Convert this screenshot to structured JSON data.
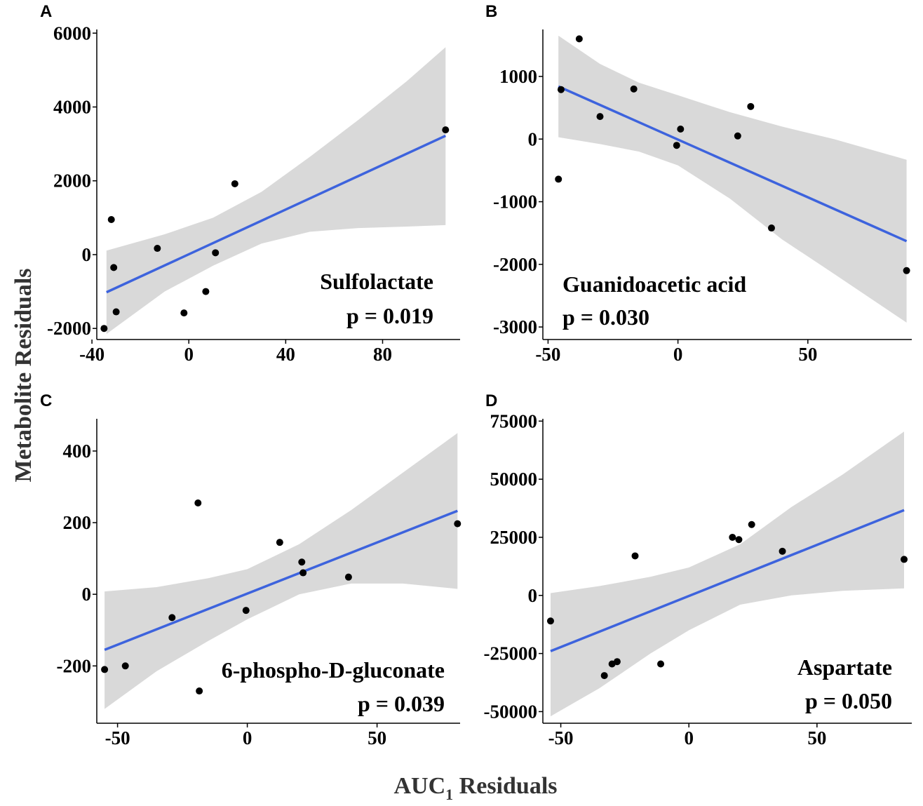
{
  "figure": {
    "ylabel": "Metabolite Residuals",
    "xlabel_main": "AUC",
    "xlabel_sub": "1",
    "xlabel_rest": " Residuals"
  },
  "colors": {
    "fit_line": "#3d63dd",
    "ci_band": "#d9d9d9",
    "points": "#000000",
    "axis": "#000000"
  },
  "chart_data": [
    {
      "panel": "A",
      "type": "scatter",
      "metabolite": "Sulfolactate",
      "p_label": "p = 0.019",
      "xlim": [
        -38,
        112
      ],
      "ylim": [
        -2300,
        6100
      ],
      "xticks": [
        -40,
        0,
        40,
        80
      ],
      "xtick_labels": [
        "-40",
        "0",
        "40",
        "80"
      ],
      "yticks": [
        -2000,
        0,
        2000,
        4000,
        6000
      ],
      "ytick_labels": [
        "-2000",
        "0",
        "2000",
        "4000",
        "6000"
      ],
      "points": [
        [
          -35,
          -2000
        ],
        [
          -32,
          950
        ],
        [
          -31,
          -350
        ],
        [
          -30,
          -1550
        ],
        [
          -13,
          170
        ],
        [
          -2,
          -1580
        ],
        [
          7,
          -1000
        ],
        [
          11,
          50
        ],
        [
          19,
          1920
        ],
        [
          106,
          3380
        ]
      ],
      "fit": {
        "x": [
          -34,
          106
        ],
        "y": [
          -1020,
          3220
        ]
      },
      "ci": {
        "x": [
          -34,
          -10,
          10,
          30,
          50,
          70,
          90,
          106
        ],
        "lower": [
          -2150,
          -1000,
          -300,
          300,
          620,
          720,
          760,
          800
        ],
        "upper": [
          110,
          550,
          1000,
          1700,
          2650,
          3650,
          4700,
          5620
        ]
      }
    },
    {
      "panel": "B",
      "type": "scatter",
      "metabolite": "Guanidoacetic acid",
      "p_label": "p = 0.030",
      "xlim": [
        -52,
        90
      ],
      "ylim": [
        -3200,
        1750
      ],
      "xticks": [
        -50,
        0,
        50
      ],
      "xtick_labels": [
        "-50",
        "0",
        "50"
      ],
      "yticks": [
        -3000,
        -2000,
        -1000,
        0,
        1000
      ],
      "ytick_labels": [
        "-3000",
        "-2000",
        "-1000",
        "0",
        "1000"
      ],
      "points": [
        [
          -46,
          -640
        ],
        [
          -45,
          790
        ],
        [
          -38,
          1600
        ],
        [
          -30,
          360
        ],
        [
          -17,
          800
        ],
        [
          -0.5,
          -100
        ],
        [
          1,
          160
        ],
        [
          23,
          50
        ],
        [
          28,
          520
        ],
        [
          36,
          -1420
        ],
        [
          88,
          -2100
        ]
      ],
      "fit": {
        "x": [
          -46,
          88
        ],
        "y": [
          840,
          -1630
        ]
      },
      "ci": {
        "x": [
          -46,
          -30,
          -15,
          0,
          20,
          40,
          60,
          88
        ],
        "lower": [
          30,
          -80,
          -200,
          -420,
          -950,
          -1600,
          -2150,
          -2930
        ],
        "upper": [
          1650,
          1200,
          900,
          700,
          430,
          200,
          0,
          -330
        ]
      }
    },
    {
      "panel": "C",
      "type": "scatter",
      "metabolite": "6-phospho-D-gluconate",
      "p_label": "p = 0.039",
      "xlim": [
        -58,
        82
      ],
      "ylim": [
        -360,
        490
      ],
      "xticks": [
        -50,
        0,
        50
      ],
      "xtick_labels": [
        "-50",
        "0",
        "50"
      ],
      "yticks": [
        -200,
        0,
        200,
        400
      ],
      "ytick_labels": [
        "-200",
        "0",
        "200",
        "400"
      ],
      "points": [
        [
          -55,
          -210
        ],
        [
          -47,
          -200
        ],
        [
          -29,
          -65
        ],
        [
          -19,
          255
        ],
        [
          -18.5,
          -270
        ],
        [
          -0.5,
          -45
        ],
        [
          12.5,
          145
        ],
        [
          21,
          90
        ],
        [
          21.5,
          60
        ],
        [
          39,
          48
        ],
        [
          81,
          197
        ]
      ],
      "fit": {
        "x": [
          -55,
          81
        ],
        "y": [
          -155,
          233
        ]
      },
      "ci": {
        "x": [
          -55,
          -35,
          -15,
          0,
          20,
          40,
          60,
          81
        ],
        "lower": [
          -320,
          -215,
          -130,
          -70,
          0,
          30,
          30,
          15
        ],
        "upper": [
          8,
          20,
          45,
          70,
          140,
          235,
          340,
          450
        ]
      }
    },
    {
      "panel": "D",
      "type": "scatter",
      "metabolite": "Aspartate",
      "p_label": "p = 0.050",
      "xlim": [
        -57,
        87
      ],
      "ylim": [
        -55000,
        76000
      ],
      "xticks": [
        -50,
        0,
        50
      ],
      "xtick_labels": [
        "-50",
        "0",
        "50"
      ],
      "yticks": [
        -50000,
        -25000,
        0,
        25000,
        50000,
        75000
      ],
      "ytick_labels": [
        "-50000",
        "-25000",
        "0",
        "25000",
        "50000",
        "75000"
      ],
      "points": [
        [
          -54,
          -11000
        ],
        [
          -33,
          -34500
        ],
        [
          -30,
          -29500
        ],
        [
          -28,
          -28500
        ],
        [
          -21,
          17000
        ],
        [
          -11,
          -29500
        ],
        [
          17,
          25000
        ],
        [
          19.5,
          24000
        ],
        [
          24.5,
          30500
        ],
        [
          36.5,
          19000
        ],
        [
          84,
          15500
        ]
      ],
      "fit": {
        "x": [
          -54,
          84
        ],
        "y": [
          -24000,
          36700
        ]
      },
      "ci": {
        "x": [
          -54,
          -35,
          -15,
          0,
          20,
          40,
          60,
          84
        ],
        "lower": [
          -52000,
          -40000,
          -25000,
          -15000,
          -4000,
          0,
          2000,
          3000
        ],
        "upper": [
          1000,
          4000,
          8000,
          12000,
          22000,
          38000,
          52000,
          70500
        ]
      }
    }
  ]
}
